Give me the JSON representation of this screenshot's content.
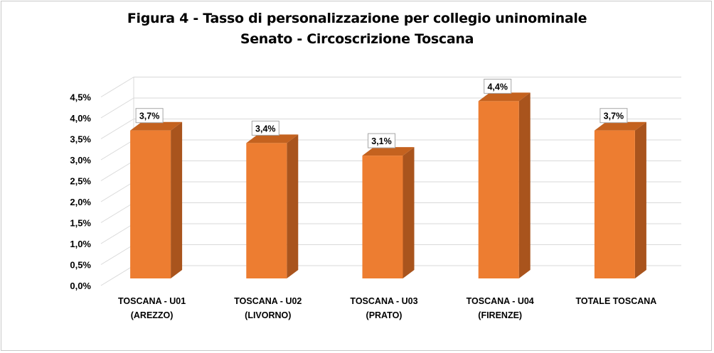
{
  "chart_data": {
    "type": "bar",
    "title": "Figura 4 - Tasso di personalizzazione per collegio uninominale",
    "subtitle": "Senato - Circoscrizione Toscana",
    "categories": [
      [
        "TOSCANA - U01",
        "(AREZZO)"
      ],
      [
        "TOSCANA - U02",
        "(LIVORNO)"
      ],
      [
        "TOSCANA - U03",
        "(PRATO)"
      ],
      [
        "TOSCANA - U04",
        "(FIRENZE)"
      ],
      [
        "TOTALE TOSCANA"
      ]
    ],
    "values": [
      3.7,
      3.4,
      3.1,
      4.4,
      3.7
    ],
    "data_labels": [
      "3,7%",
      "3,4%",
      "3,1%",
      "4,4%",
      "3,7%"
    ],
    "y_ticks": [
      "0,0%",
      "0,5%",
      "1,0%",
      "1,5%",
      "2,0%",
      "2,5%",
      "3,0%",
      "3,5%",
      "4,0%",
      "4,5%"
    ],
    "ylim": [
      0,
      4.5
    ],
    "xlabel": "",
    "ylabel": "",
    "grid": true,
    "legend": "none",
    "colors": {
      "bar_front": "#ed7d31",
      "bar_side": "#a9541d",
      "bar_top": "#c4621f",
      "grid": "#d9d9d9"
    }
  }
}
